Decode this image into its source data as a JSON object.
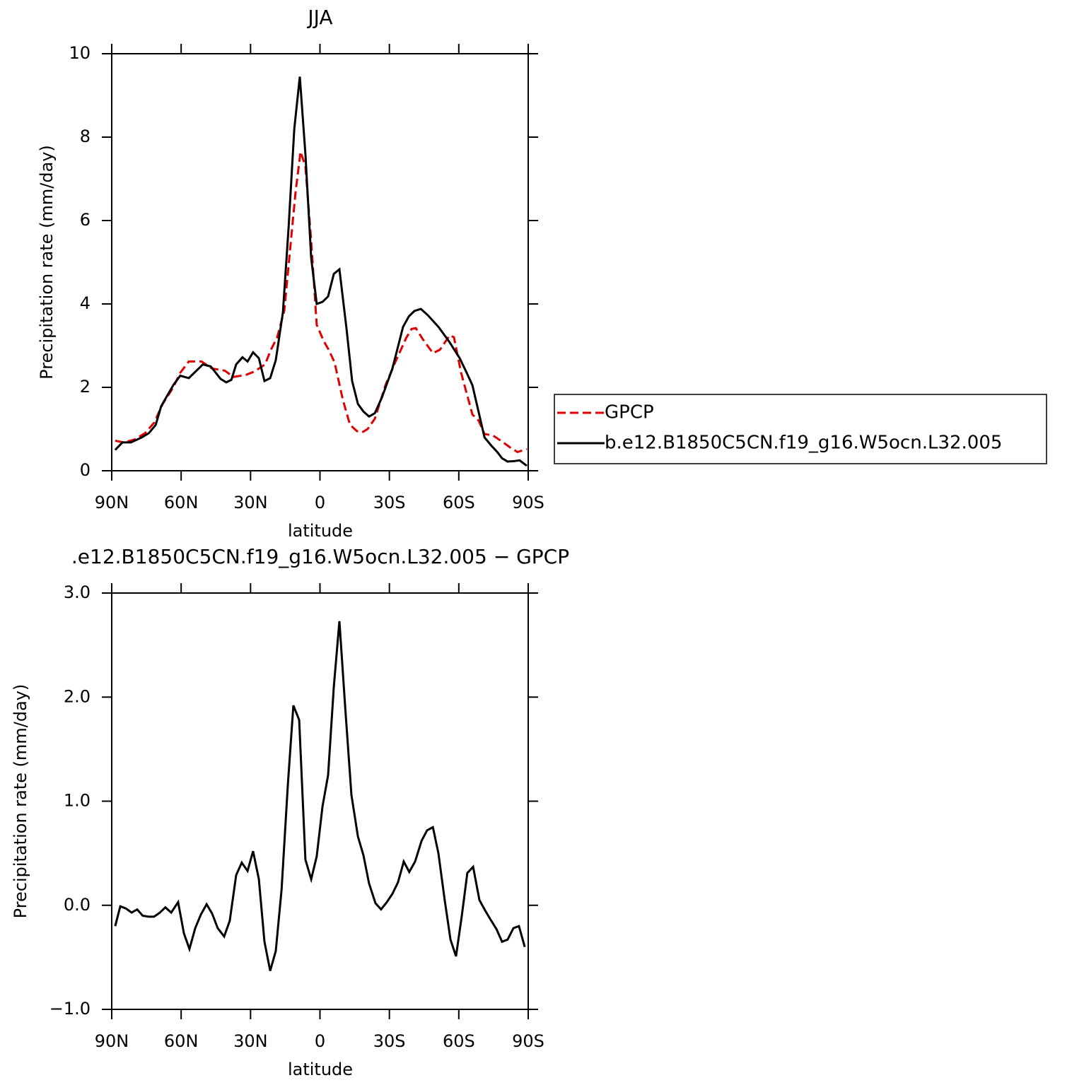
{
  "chart_data": [
    {
      "type": "line",
      "title": "JJA",
      "xlabel": "latitude",
      "ylabel": "Precipitation rate (mm/day)",
      "xlim": [
        90,
        -90
      ],
      "ylim": [
        0,
        10
      ],
      "xticks": [
        {
          "value": 90,
          "label": "90N"
        },
        {
          "value": 60,
          "label": "60N"
        },
        {
          "value": 30,
          "label": "30N"
        },
        0,
        {
          "value": -30,
          "label": "30S"
        },
        {
          "value": -60,
          "label": "60S"
        },
        {
          "value": -90,
          "label": "90S"
        }
      ],
      "yticks": [
        0,
        2,
        4,
        6,
        8,
        10
      ],
      "legend": "right",
      "series": [
        {
          "name": "GPCP",
          "color": "#e00000",
          "linestyle": "dashed",
          "x": [
            88.5,
            84.8,
            80.2,
            75.6,
            71.7,
            68,
            63.4,
            60.4,
            56.7,
            51.2,
            46.6,
            41.1,
            37.4,
            31.9,
            28.3,
            23.7,
            21.2,
            18.5,
            15.4,
            12.4,
            10.5,
            8.4,
            6.3,
            3.8,
            1.4,
            -1.7,
            -3.8,
            -6.3,
            -9.9,
            -13,
            -16,
            -18.2,
            -20.6,
            -23.7,
            -28.3,
            -32.9,
            -37.4,
            -39.6,
            -41.4,
            -44.5,
            -48.8,
            -51.8,
            -56.1,
            -57.9,
            -61,
            -65.9,
            -68.6,
            -71.1,
            -74.7,
            -78.7,
            -82.4,
            -85.4,
            -89.4
          ],
          "values": [
            0.72,
            0.68,
            0.75,
            0.9,
            1.15,
            1.6,
            2.0,
            2.35,
            2.62,
            2.62,
            2.45,
            2.4,
            2.25,
            2.3,
            2.38,
            2.55,
            2.9,
            3.2,
            3.85,
            5.6,
            6.7,
            7.65,
            7.3,
            5.5,
            3.5,
            3.1,
            2.9,
            2.6,
            1.7,
            1.1,
            0.95,
            0.92,
            1.0,
            1.25,
            2.05,
            2.65,
            3.2,
            3.4,
            3.42,
            3.15,
            2.82,
            2.9,
            3.25,
            3.2,
            2.35,
            1.35,
            1.2,
            0.88,
            0.85,
            0.7,
            0.55,
            0.45,
            0.52
          ]
        },
        {
          "name": "b.e12.B1850C5CN.f19_g16.W5ocn.L32.005",
          "color": "#000000",
          "linestyle": "solid",
          "x": [
            88.5,
            85.4,
            81.7,
            77,
            74,
            71,
            68.6,
            63.4,
            60.4,
            56.7,
            50.6,
            47.2,
            42.9,
            40.5,
            38.3,
            36.2,
            33.5,
            31.3,
            28.9,
            26.4,
            24,
            21.5,
            19.1,
            16,
            13.6,
            11.1,
            8.7,
            6.3,
            3.8,
            1.4,
            -1.1,
            -3.5,
            -6,
            -8.4,
            -11.5,
            -13.9,
            -16.4,
            -18.8,
            -21.2,
            -23.7,
            -26.7,
            -31.3,
            -35.9,
            -38.4,
            -40.8,
            -43.6,
            -46.6,
            -51.2,
            -55.8,
            -60.4,
            -63.4,
            -65.9,
            -71.1,
            -74.1,
            -76.6,
            -78.7,
            -81.1,
            -83.9,
            -86.3,
            -89.4
          ],
          "values": [
            0.5,
            0.68,
            0.68,
            0.8,
            0.9,
            1.1,
            1.55,
            2.05,
            2.28,
            2.22,
            2.55,
            2.5,
            2.2,
            2.12,
            2.18,
            2.55,
            2.72,
            2.62,
            2.84,
            2.7,
            2.15,
            2.22,
            2.65,
            3.8,
            5.8,
            8.2,
            9.45,
            7.6,
            5.1,
            4.0,
            4.05,
            4.18,
            4.72,
            4.83,
            3.4,
            2.15,
            1.6,
            1.42,
            1.3,
            1.38,
            1.75,
            2.45,
            3.45,
            3.7,
            3.83,
            3.88,
            3.73,
            3.45,
            3.1,
            2.7,
            2.35,
            2.05,
            0.8,
            0.6,
            0.45,
            0.3,
            0.22,
            0.23,
            0.25,
            0.12
          ]
        }
      ]
    },
    {
      "type": "line",
      "title": ".e12.B1850C5CN.f19_g16.W5ocn.L32.005 − GPCP",
      "xlabel": "latitude",
      "ylabel": "Precipitation rate (mm/day)",
      "xlim": [
        90,
        -90
      ],
      "ylim": [
        -1,
        3
      ],
      "xticks": [
        {
          "value": 90,
          "label": "90N"
        },
        {
          "value": 60,
          "label": "60N"
        },
        {
          "value": 30,
          "label": "30N"
        },
        0,
        {
          "value": -30,
          "label": "30S"
        },
        {
          "value": -60,
          "label": "60S"
        },
        {
          "value": -90,
          "label": "90S"
        }
      ],
      "yticks": [
        {
          "value": -1,
          "label": "−1.0"
        },
        {
          "value": 0,
          "label": "0.0"
        },
        {
          "value": 1,
          "label": "1.0"
        },
        {
          "value": 2,
          "label": "2.0"
        },
        {
          "value": 3,
          "label": "3.0"
        }
      ],
      "color": "#000000",
      "x": [
        88.5,
        86.3,
        83.9,
        81.4,
        79,
        76.6,
        74.1,
        71.7,
        69.2,
        66.8,
        64.3,
        61.3,
        58.8,
        56.4,
        53.9,
        51.5,
        49,
        46.6,
        44.2,
        41.4,
        39,
        36.2,
        33.8,
        31.3,
        28.9,
        26.4,
        24,
        21.5,
        19.1,
        16.6,
        13.9,
        11.5,
        9,
        6.3,
        3.8,
        1.4,
        -1.1,
        -3.5,
        -6,
        -8.4,
        -10.9,
        -13.6,
        -16.4,
        -18.8,
        -21.2,
        -24,
        -26.4,
        -28.9,
        -31.3,
        -33.7,
        -36.2,
        -38.6,
        -41.1,
        -43.9,
        -46.3,
        -48.8,
        -51.2,
        -53.9,
        -56.4,
        -58.8,
        -61.3,
        -63.7,
        -66.2,
        -68.9,
        -71.4,
        -73.8,
        -76.3,
        -78.7,
        -81.1,
        -83.6,
        -86,
        -88.5
      ],
      "values": [
        -0.2,
        -0.01,
        -0.03,
        -0.07,
        -0.04,
        -0.1,
        -0.11,
        -0.11,
        -0.07,
        -0.02,
        -0.07,
        0.03,
        -0.27,
        -0.42,
        -0.22,
        -0.09,
        0.01,
        -0.08,
        -0.22,
        -0.3,
        -0.15,
        0.29,
        0.41,
        0.33,
        0.52,
        0.25,
        -0.35,
        -0.63,
        -0.44,
        0.15,
        1.15,
        1.92,
        1.78,
        0.44,
        0.25,
        0.47,
        0.95,
        1.25,
        2.1,
        2.73,
        1.9,
        1.06,
        0.66,
        0.48,
        0.21,
        0.02,
        -0.04,
        0.03,
        0.11,
        0.22,
        0.42,
        0.32,
        0.42,
        0.62,
        0.72,
        0.75,
        0.5,
        0.05,
        -0.33,
        -0.49,
        -0.1,
        0.31,
        0.37,
        0.05,
        -0.05,
        -0.14,
        -0.23,
        -0.35,
        -0.33,
        -0.22,
        -0.2,
        -0.4
      ]
    }
  ]
}
